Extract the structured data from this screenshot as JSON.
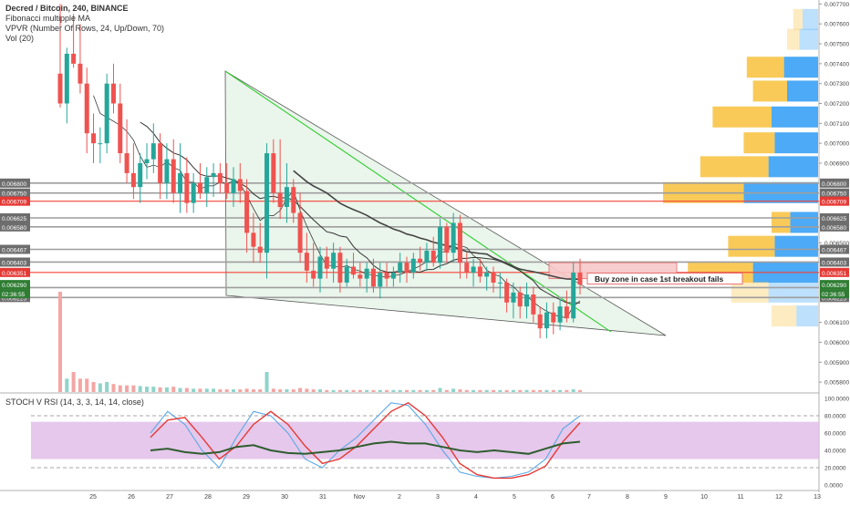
{
  "legend": {
    "title": "Decred / Bitcoin, 240, BINANCE",
    "line2": "Fibonacci multipple MA",
    "line3": "VPVR (Number Of Rows, 24, Up/Down, 70)",
    "line4": "Vol (20)"
  },
  "indicator_label": "STOCH V RSI (14, 3, 3, 14, 14, close)",
  "annotation": "Buy zone in case 1st breakout fails",
  "colors": {
    "up": "#26a69a",
    "down": "#ef5350",
    "grey_level": "#9e9e9e",
    "red_level": "#f44336",
    "triangle_fill": "#e8f5e9",
    "stoch_bg": "#e1bee7",
    "vp_up": "#42a5f5",
    "vp_down": "#f9c74f"
  },
  "chart_data": [
    {
      "type": "candlestick",
      "title": "Decred / Bitcoin, 240, BINANCE",
      "x_ticks": [
        "25",
        "26",
        "27",
        "28",
        "29",
        "30",
        "31",
        "Nov",
        "2",
        "3",
        "4",
        "5",
        "6",
        "7",
        "8",
        "9",
        "10",
        "11",
        "12",
        "13"
      ],
      "y_ticks": [
        "0.007700",
        "0.007600",
        "0.007500",
        "0.007400",
        "0.007300",
        "0.007200",
        "0.007100",
        "0.007000",
        "0.006900",
        "0.006800",
        "0.006750",
        "0.006709",
        "0.006625",
        "0.006580",
        "0.006500",
        "0.006467",
        "0.006403",
        "0.006351",
        "0.006290",
        "02:36:55",
        "0.006275",
        "0.006225",
        "0.006100",
        "0.006000",
        "0.005900",
        "0.005800"
      ],
      "ylim": [
        0.00575,
        0.00772
      ],
      "grey_levels": [
        "0.006800",
        "0.006750",
        "0.006625",
        "0.006580",
        "0.006467",
        "0.006403",
        "0.006275",
        "0.006225"
      ],
      "red_levels": [
        "0.006709",
        "0.006351"
      ],
      "current_price": "0.006290",
      "countdown": "02:36:55",
      "annotation": "Buy zone in case 1st breakout fails",
      "candles": [
        {
          "o": 0.00735,
          "h": 0.0077,
          "l": 0.00718,
          "c": 0.0072
        },
        {
          "o": 0.0072,
          "h": 0.00748,
          "l": 0.0071,
          "c": 0.00745
        },
        {
          "o": 0.00745,
          "h": 0.00765,
          "l": 0.00738,
          "c": 0.0074
        },
        {
          "o": 0.0074,
          "h": 0.0076,
          "l": 0.00725,
          "c": 0.0073
        },
        {
          "o": 0.0073,
          "h": 0.00738,
          "l": 0.00695,
          "c": 0.00705
        },
        {
          "o": 0.00705,
          "h": 0.00715,
          "l": 0.0069,
          "c": 0.007
        },
        {
          "o": 0.007,
          "h": 0.00708,
          "l": 0.0069,
          "c": 0.007
        },
        {
          "o": 0.007,
          "h": 0.00735,
          "l": 0.00695,
          "c": 0.0073
        },
        {
          "o": 0.0073,
          "h": 0.0074,
          "l": 0.00715,
          "c": 0.0072
        },
        {
          "o": 0.0072,
          "h": 0.0073,
          "l": 0.0069,
          "c": 0.00695
        },
        {
          "o": 0.00695,
          "h": 0.00712,
          "l": 0.0068,
          "c": 0.00685
        },
        {
          "o": 0.00685,
          "h": 0.007,
          "l": 0.00672,
          "c": 0.00678
        },
        {
          "o": 0.00678,
          "h": 0.00695,
          "l": 0.0067,
          "c": 0.0069
        },
        {
          "o": 0.0069,
          "h": 0.007,
          "l": 0.00682,
          "c": 0.00692
        },
        {
          "o": 0.00692,
          "h": 0.0071,
          "l": 0.00685,
          "c": 0.007
        },
        {
          "o": 0.007,
          "h": 0.00705,
          "l": 0.00672,
          "c": 0.0068
        },
        {
          "o": 0.0068,
          "h": 0.007,
          "l": 0.00672,
          "c": 0.00692
        },
        {
          "o": 0.00692,
          "h": 0.00702,
          "l": 0.0067,
          "c": 0.00675
        },
        {
          "o": 0.00675,
          "h": 0.007,
          "l": 0.00665,
          "c": 0.00685
        },
        {
          "o": 0.00685,
          "h": 0.00693,
          "l": 0.00665,
          "c": 0.0067
        },
        {
          "o": 0.0067,
          "h": 0.00685,
          "l": 0.00665,
          "c": 0.0068
        },
        {
          "o": 0.0068,
          "h": 0.0069,
          "l": 0.00672,
          "c": 0.00675
        },
        {
          "o": 0.00675,
          "h": 0.00688,
          "l": 0.00668,
          "c": 0.00683
        },
        {
          "o": 0.00683,
          "h": 0.0069,
          "l": 0.00673,
          "c": 0.00685
        },
        {
          "o": 0.00685,
          "h": 0.0069,
          "l": 0.00675,
          "c": 0.0068
        },
        {
          "o": 0.0068,
          "h": 0.0069,
          "l": 0.00672,
          "c": 0.00675
        },
        {
          "o": 0.00675,
          "h": 0.00688,
          "l": 0.00668,
          "c": 0.00682
        },
        {
          "o": 0.00682,
          "h": 0.0069,
          "l": 0.0067,
          "c": 0.00676
        },
        {
          "o": 0.00676,
          "h": 0.00682,
          "l": 0.00645,
          "c": 0.00655
        },
        {
          "o": 0.00655,
          "h": 0.00665,
          "l": 0.0064,
          "c": 0.00648
        },
        {
          "o": 0.00648,
          "h": 0.0066,
          "l": 0.0064,
          "c": 0.00645
        },
        {
          "o": 0.00645,
          "h": 0.007,
          "l": 0.00632,
          "c": 0.00695
        },
        {
          "o": 0.00695,
          "h": 0.00702,
          "l": 0.0067,
          "c": 0.00675
        },
        {
          "o": 0.00675,
          "h": 0.00702,
          "l": 0.00662,
          "c": 0.00668
        },
        {
          "o": 0.00668,
          "h": 0.0069,
          "l": 0.0066,
          "c": 0.00678
        },
        {
          "o": 0.00678,
          "h": 0.00682,
          "l": 0.0066,
          "c": 0.00665
        },
        {
          "o": 0.00665,
          "h": 0.00675,
          "l": 0.0064,
          "c": 0.00645
        },
        {
          "o": 0.00645,
          "h": 0.00655,
          "l": 0.0063,
          "c": 0.00636
        },
        {
          "o": 0.00636,
          "h": 0.0065,
          "l": 0.00628,
          "c": 0.00632
        },
        {
          "o": 0.00632,
          "h": 0.00648,
          "l": 0.00625,
          "c": 0.00643
        },
        {
          "o": 0.00643,
          "h": 0.00648,
          "l": 0.00632,
          "c": 0.00637
        },
        {
          "o": 0.00637,
          "h": 0.0065,
          "l": 0.0063,
          "c": 0.00645
        },
        {
          "o": 0.00645,
          "h": 0.00648,
          "l": 0.00625,
          "c": 0.0063
        },
        {
          "o": 0.0063,
          "h": 0.00642,
          "l": 0.00628,
          "c": 0.00638
        },
        {
          "o": 0.00638,
          "h": 0.00645,
          "l": 0.00632,
          "c": 0.00634
        },
        {
          "o": 0.00634,
          "h": 0.0064,
          "l": 0.00628,
          "c": 0.00632
        },
        {
          "o": 0.00632,
          "h": 0.0064,
          "l": 0.00625,
          "c": 0.00637
        },
        {
          "o": 0.00637,
          "h": 0.00642,
          "l": 0.00625,
          "c": 0.00628
        },
        {
          "o": 0.00628,
          "h": 0.0064,
          "l": 0.00622,
          "c": 0.00635
        },
        {
          "o": 0.00635,
          "h": 0.0064,
          "l": 0.00628,
          "c": 0.00632
        },
        {
          "o": 0.00632,
          "h": 0.00638,
          "l": 0.00628,
          "c": 0.00635
        },
        {
          "o": 0.00635,
          "h": 0.00645,
          "l": 0.0063,
          "c": 0.0064
        },
        {
          "o": 0.0064,
          "h": 0.00643,
          "l": 0.0063,
          "c": 0.00635
        },
        {
          "o": 0.00635,
          "h": 0.00645,
          "l": 0.00632,
          "c": 0.00642
        },
        {
          "o": 0.00642,
          "h": 0.00648,
          "l": 0.00636,
          "c": 0.0064
        },
        {
          "o": 0.0064,
          "h": 0.0065,
          "l": 0.00636,
          "c": 0.00646
        },
        {
          "o": 0.00646,
          "h": 0.00653,
          "l": 0.00638,
          "c": 0.0064
        },
        {
          "o": 0.0064,
          "h": 0.00662,
          "l": 0.00637,
          "c": 0.00658
        },
        {
          "o": 0.00658,
          "h": 0.0066,
          "l": 0.0064,
          "c": 0.00645
        },
        {
          "o": 0.00645,
          "h": 0.00665,
          "l": 0.0064,
          "c": 0.0066
        },
        {
          "o": 0.0066,
          "h": 0.00664,
          "l": 0.00632,
          "c": 0.0064
        },
        {
          "o": 0.0064,
          "h": 0.00645,
          "l": 0.00632,
          "c": 0.00635
        },
        {
          "o": 0.00635,
          "h": 0.00642,
          "l": 0.00628,
          "c": 0.00638
        },
        {
          "o": 0.00638,
          "h": 0.00642,
          "l": 0.0063,
          "c": 0.00633
        },
        {
          "o": 0.00633,
          "h": 0.00638,
          "l": 0.00626,
          "c": 0.00635
        },
        {
          "o": 0.00635,
          "h": 0.00638,
          "l": 0.00625,
          "c": 0.0063
        },
        {
          "o": 0.0063,
          "h": 0.00635,
          "l": 0.00622,
          "c": 0.0063
        },
        {
          "o": 0.0063,
          "h": 0.00632,
          "l": 0.00615,
          "c": 0.0062
        },
        {
          "o": 0.0062,
          "h": 0.0063,
          "l": 0.00612,
          "c": 0.00625
        },
        {
          "o": 0.00625,
          "h": 0.00628,
          "l": 0.00612,
          "c": 0.00618
        },
        {
          "o": 0.00618,
          "h": 0.0063,
          "l": 0.00612,
          "c": 0.00624
        },
        {
          "o": 0.00624,
          "h": 0.00628,
          "l": 0.0061,
          "c": 0.00614
        },
        {
          "o": 0.00614,
          "h": 0.00618,
          "l": 0.00602,
          "c": 0.00607
        },
        {
          "o": 0.00607,
          "h": 0.0062,
          "l": 0.00602,
          "c": 0.00615
        },
        {
          "o": 0.00615,
          "h": 0.0062,
          "l": 0.00604,
          "c": 0.0061
        },
        {
          "o": 0.0061,
          "h": 0.00622,
          "l": 0.00606,
          "c": 0.00618
        },
        {
          "o": 0.00618,
          "h": 0.00626,
          "l": 0.0061,
          "c": 0.00612
        },
        {
          "o": 0.00612,
          "h": 0.0064,
          "l": 0.0061,
          "c": 0.00635
        },
        {
          "o": 0.00635,
          "h": 0.00642,
          "l": 0.00624,
          "c": 0.00629
        }
      ],
      "volume": [
        15,
        2,
        3,
        2,
        2,
        1.5,
        1.3,
        1.5,
        1.2,
        1,
        1,
        1,
        0.9,
        0.8,
        0.8,
        0.7,
        0.7,
        0.8,
        0.6,
        0.6,
        0.5,
        0.5,
        0.5,
        0.5,
        0.4,
        0.4,
        0.4,
        0.4,
        0.5,
        0.4,
        0.4,
        3,
        0.5,
        0.4,
        0.4,
        0.4,
        0.6,
        0.5,
        0.4,
        0.4,
        0.3,
        0.3,
        0.3,
        0.3,
        0.3,
        0.3,
        0.3,
        0.3,
        0.3,
        0.3,
        0.3,
        0.3,
        0.3,
        0.3,
        0.3,
        0.3,
        0.3,
        0.6,
        0.3,
        0.5,
        0.4,
        0.3,
        0.3,
        0.3,
        0.3,
        0.3,
        0.3,
        0.3,
        0.3,
        0.3,
        0.3,
        0.3,
        0.3,
        0.3,
        0.3,
        0.3,
        0.3,
        0.4,
        0.3
      ],
      "volume_profile": [
        {
          "price": 0.00762,
          "up": 0.5,
          "down": 0.3
        },
        {
          "price": 0.00752,
          "up": 0.6,
          "down": 0.4
        },
        {
          "price": 0.00738,
          "up": 1.1,
          "down": 1.2
        },
        {
          "price": 0.00726,
          "up": 1.0,
          "down": 1.1
        },
        {
          "price": 0.00713,
          "up": 1.5,
          "down": 1.9
        },
        {
          "price": 0.007,
          "up": 1.4,
          "down": 1.0
        },
        {
          "price": 0.00688,
          "up": 1.6,
          "down": 2.2
        },
        {
          "price": 0.00675,
          "up": 2.4,
          "down": 2.6
        },
        {
          "price": 0.0066,
          "up": 0.9,
          "down": 0.6
        },
        {
          "price": 0.00648,
          "up": 1.4,
          "down": 1.5
        },
        {
          "price": 0.00635,
          "up": 2.1,
          "down": 2.1
        },
        {
          "price": 0.00625,
          "up": 1.6,
          "down": 1.2
        },
        {
          "price": 0.00613,
          "up": 0.7,
          "down": 0.8
        }
      ]
    },
    {
      "type": "line",
      "title": "STOCH V RSI (14, 3, 3, 14, 14, close)",
      "y_ticks": [
        "100.0000",
        "80.0000",
        "60.0000",
        "40.0000",
        "20.0000",
        "0.0000"
      ],
      "ylim": [
        0,
        100
      ],
      "band": [
        30,
        73
      ],
      "series": [
        {
          "values": [
            60,
            85,
            70,
            40,
            20,
            55,
            85,
            80,
            60,
            30,
            20,
            40,
            55,
            75,
            95,
            92,
            70,
            40,
            15,
            10,
            8,
            10,
            15,
            30,
            65,
            80
          ]
        },
        {
          "values": [
            55,
            75,
            78,
            55,
            30,
            45,
            70,
            85,
            70,
            45,
            25,
            30,
            45,
            65,
            85,
            95,
            80,
            55,
            25,
            12,
            8,
            8,
            12,
            22,
            50,
            72
          ]
        },
        {
          "values": [
            40,
            42,
            38,
            36,
            38,
            44,
            46,
            40,
            37,
            36,
            38,
            40,
            44,
            48,
            50,
            48,
            48,
            44,
            40,
            38,
            40,
            38,
            36,
            42,
            48,
            50
          ]
        }
      ]
    }
  ]
}
